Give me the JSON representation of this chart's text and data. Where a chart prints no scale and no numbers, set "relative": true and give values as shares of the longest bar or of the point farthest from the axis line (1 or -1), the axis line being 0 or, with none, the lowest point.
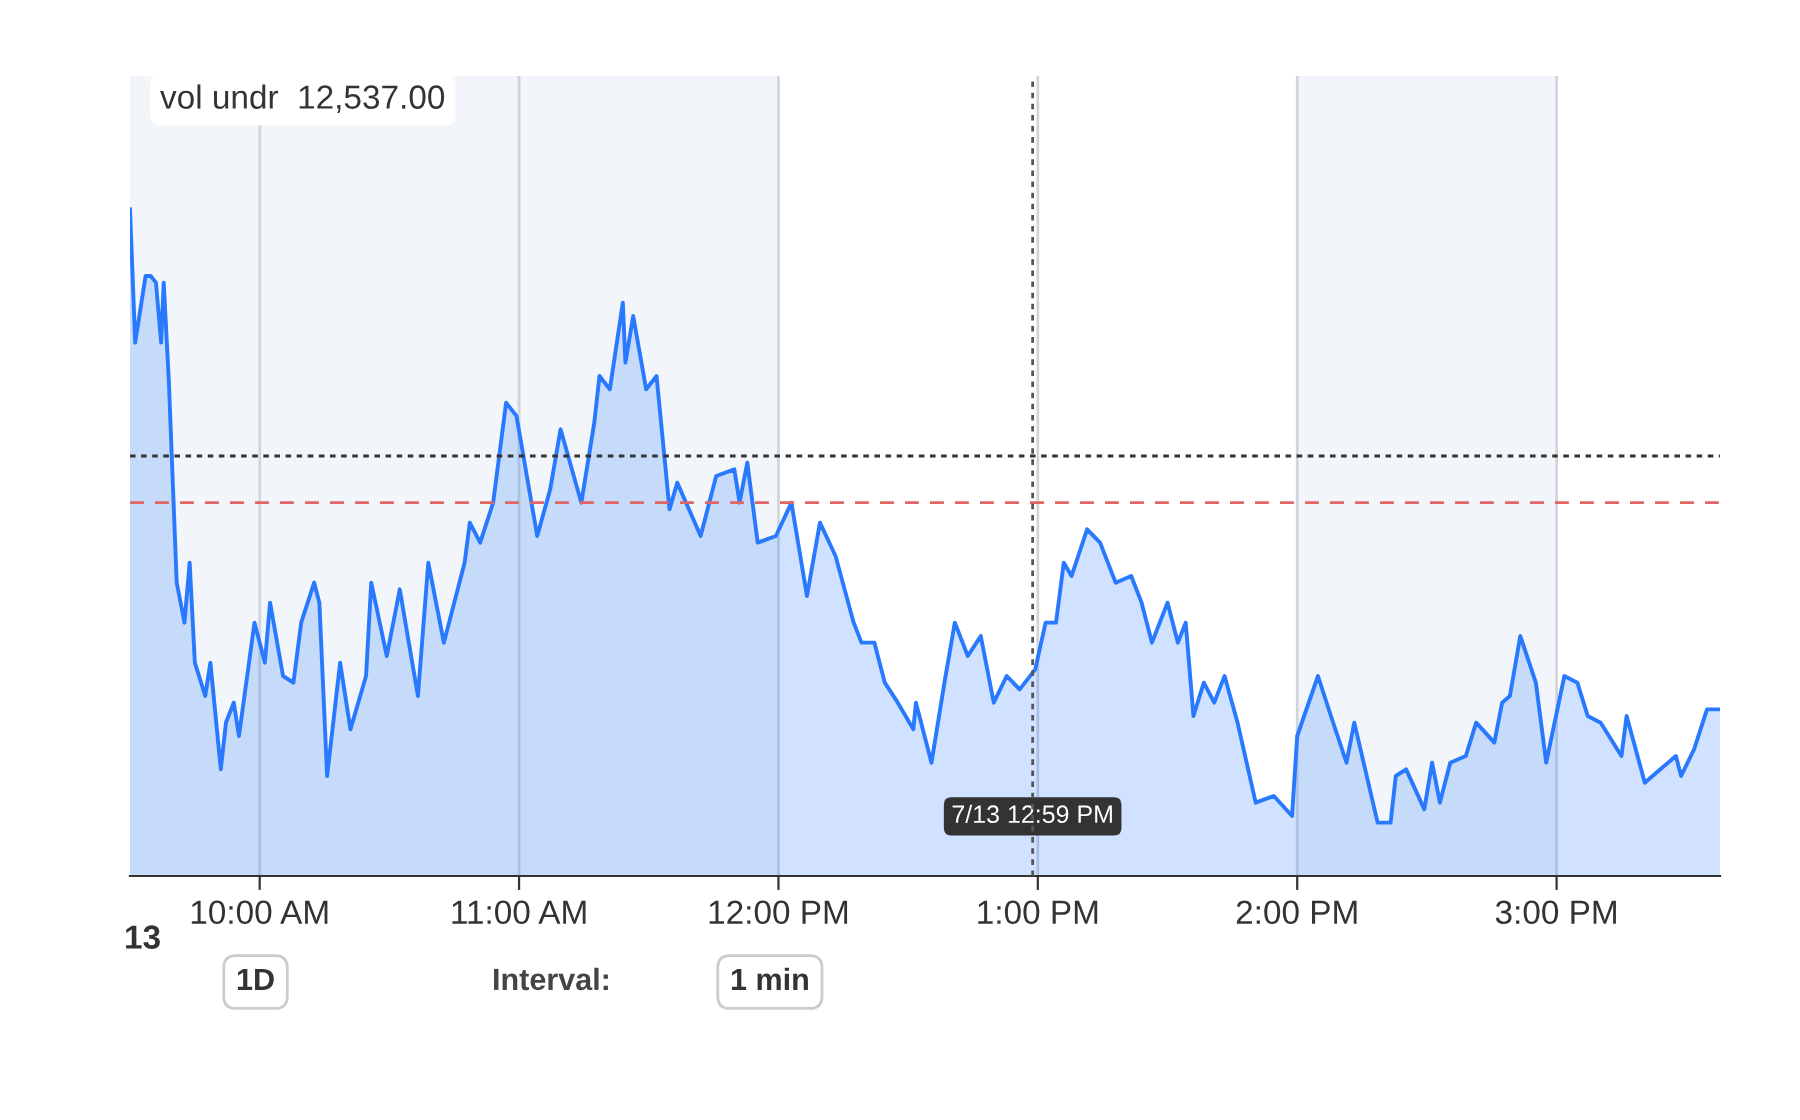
{
  "chart_data": {
    "type": "area",
    "relative": true,
    "x": [
      9.5,
      9.52,
      9.56,
      9.58,
      9.6,
      9.62,
      9.63,
      9.65,
      9.68,
      9.71,
      9.73,
      9.75,
      9.79,
      9.81,
      9.85,
      9.87,
      9.9,
      9.92,
      9.98,
      10.02,
      10.04,
      10.09,
      10.13,
      10.16,
      10.21,
      10.23,
      10.26,
      10.31,
      10.35,
      10.41,
      10.43,
      10.49,
      10.54,
      10.61,
      10.65,
      10.71,
      10.75,
      10.79,
      10.81,
      10.85,
      10.9,
      10.95,
      10.99,
      11.07,
      11.12,
      11.16,
      11.24,
      11.29,
      11.31,
      11.35,
      11.4,
      11.41,
      11.44,
      11.49,
      11.53,
      11.58,
      11.61,
      11.7,
      11.76,
      11.83,
      11.85,
      11.88,
      11.92,
      11.99,
      12.05,
      12.11,
      12.16,
      12.22,
      12.29,
      12.32,
      12.37,
      12.41,
      12.46,
      12.52,
      12.53,
      12.59,
      12.64,
      12.68,
      12.73,
      12.78,
      12.83,
      12.88,
      12.93,
      12.99,
      13.03,
      13.07,
      13.1,
      13.13,
      13.19,
      13.24,
      13.3,
      13.36,
      13.4,
      13.44,
      13.5,
      13.54,
      13.57,
      13.6,
      13.64,
      13.68,
      13.71,
      13.72,
      13.77,
      13.84,
      13.91,
      13.98,
      14.0,
      14.08,
      14.13,
      14.19,
      14.22,
      14.31,
      14.36,
      14.38,
      14.42,
      14.49,
      14.52,
      14.55,
      14.59,
      14.65,
      14.69,
      14.76,
      14.79,
      14.82,
      14.86,
      14.92,
      14.96,
      15.03,
      15.08,
      15.12,
      15.17,
      15.25,
      15.27,
      15.34,
      15.4,
      15.46,
      15.48,
      15.53,
      15.58,
      15.63
    ],
    "series": [
      {
        "color": "#2979ff",
        "values": [
          1.0,
          0.8,
          0.9,
          0.9,
          0.89,
          0.8,
          0.89,
          0.74,
          0.44,
          0.38,
          0.47,
          0.32,
          0.27,
          0.32,
          0.16,
          0.23,
          0.26,
          0.21,
          0.38,
          0.32,
          0.41,
          0.3,
          0.29,
          0.38,
          0.44,
          0.41,
          0.15,
          0.32,
          0.22,
          0.3,
          0.44,
          0.33,
          0.43,
          0.27,
          0.47,
          0.35,
          0.41,
          0.47,
          0.53,
          0.5,
          0.56,
          0.71,
          0.69,
          0.51,
          0.58,
          0.67,
          0.56,
          0.68,
          0.75,
          0.73,
          0.86,
          0.77,
          0.84,
          0.73,
          0.75,
          0.55,
          0.59,
          0.51,
          0.6,
          0.61,
          0.56,
          0.62,
          0.5,
          0.51,
          0.56,
          0.42,
          0.53,
          0.48,
          0.38,
          0.35,
          0.35,
          0.29,
          0.26,
          0.22,
          0.26,
          0.17,
          0.29,
          0.38,
          0.33,
          0.36,
          0.26,
          0.3,
          0.28,
          0.31,
          0.38,
          0.38,
          0.47,
          0.45,
          0.52,
          0.5,
          0.44,
          0.45,
          0.41,
          0.35,
          0.41,
          0.35,
          0.38,
          0.24,
          0.29,
          0.26,
          0.29,
          0.3,
          0.23,
          0.11,
          0.12,
          0.09,
          0.21,
          0.3,
          0.24,
          0.17,
          0.23,
          0.08,
          0.08,
          0.15,
          0.16,
          0.1,
          0.17,
          0.11,
          0.17,
          0.18,
          0.23,
          0.2,
          0.26,
          0.27,
          0.36,
          0.29,
          0.17,
          0.3,
          0.29,
          0.24,
          0.23,
          0.18,
          0.24,
          0.14,
          0.16,
          0.18,
          0.15,
          0.19,
          0.25,
          0.25
        ]
      }
    ],
    "xlim": [
      9.5,
      15.63
    ],
    "xticks": [
      {
        "value": 10,
        "label": "10:00 AM"
      },
      {
        "value": 11,
        "label": "11:00 AM"
      },
      {
        "value": 12,
        "label": "12:00 PM"
      },
      {
        "value": 13,
        "label": "1:00 PM"
      },
      {
        "value": 14,
        "label": "2:00 PM"
      },
      {
        "value": 15,
        "label": "3:00 PM"
      }
    ],
    "grid": "x",
    "ref_lines": [
      {
        "axis": "y",
        "value": 0.63,
        "color": "#333333",
        "line_style": "dotted"
      },
      {
        "axis": "y",
        "value": 0.56,
        "color": "#e06666",
        "line_style": "dashed"
      },
      {
        "axis": "x",
        "value": 12.98,
        "label": "7/13 12:59 PM",
        "color": "#555555",
        "line_style": "dotted"
      }
    ],
    "bands": [
      {
        "axis": "x",
        "from": 9.5,
        "to": 12,
        "color": "#f2f5f9"
      },
      {
        "axis": "x",
        "from": 14,
        "to": 15,
        "color": "#f2f5f9"
      }
    ],
    "annotations": [
      "vol undr  12,537.00",
      "13",
      "1D",
      "Interval:",
      "1 min"
    ]
  }
}
